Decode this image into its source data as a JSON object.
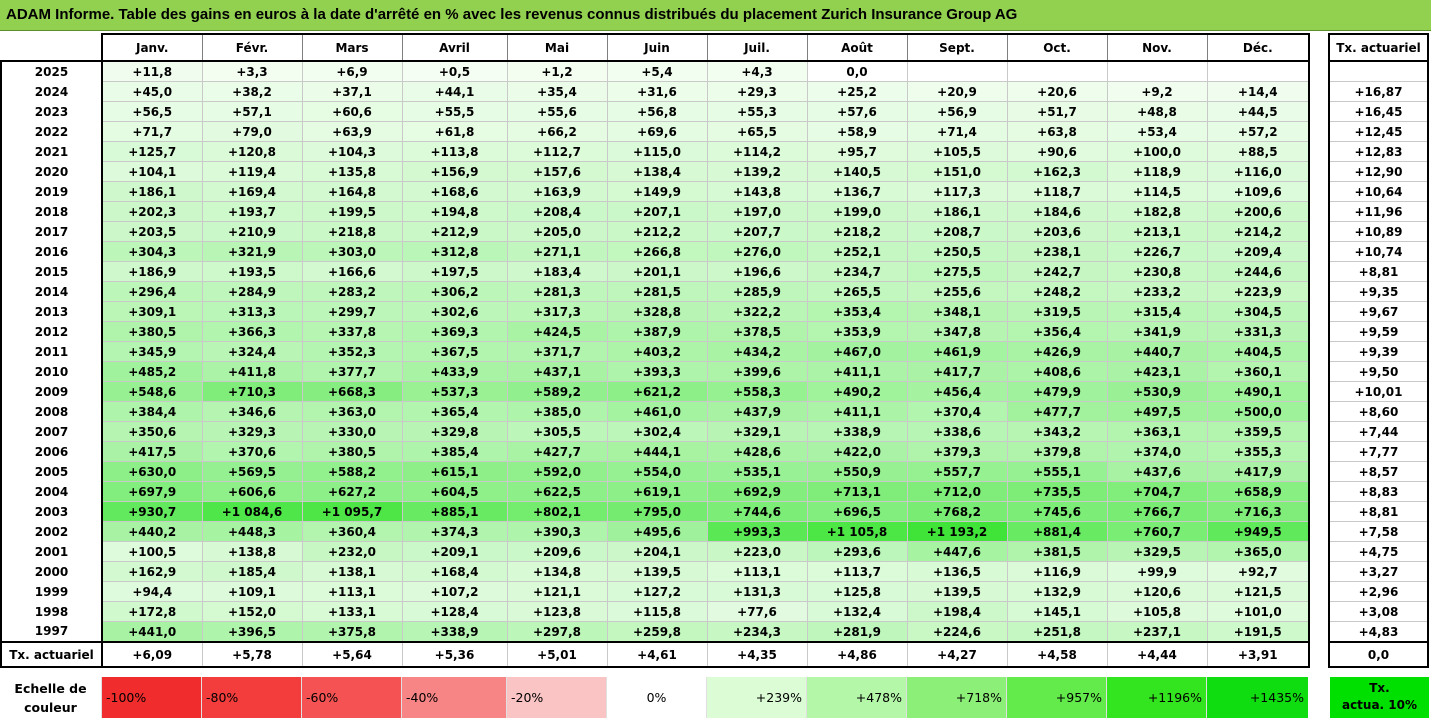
{
  "title": "ADAM Informe. Table des gains en euros à la date d'arrêté en % avec les revenus connus distribués du placement Zurich Insurance Group AG",
  "months": [
    "Janv.",
    "Févr.",
    "Mars",
    "Avril",
    "Mai",
    "Juin",
    "Juil.",
    "Août",
    "Sept.",
    "Oct.",
    "Nov.",
    "Déc."
  ],
  "tx_header": "Tx. actuariel",
  "rows": [
    {
      "year": "2025",
      "values": [
        "+11,8",
        "+3,3",
        "+6,9",
        "+0,5",
        "+1,2",
        "+5,4",
        "+4,3",
        "0,0",
        "",
        "",
        "",
        ""
      ],
      "tx": ""
    },
    {
      "year": "2024",
      "values": [
        "+45,0",
        "+38,2",
        "+37,1",
        "+44,1",
        "+35,4",
        "+31,6",
        "+29,3",
        "+25,2",
        "+20,9",
        "+20,6",
        "+9,2",
        "+14,4"
      ],
      "tx": "+16,87"
    },
    {
      "year": "2023",
      "values": [
        "+56,5",
        "+57,1",
        "+60,6",
        "+55,5",
        "+55,6",
        "+56,8",
        "+55,3",
        "+57,6",
        "+56,9",
        "+51,7",
        "+48,8",
        "+44,5"
      ],
      "tx": "+16,45"
    },
    {
      "year": "2022",
      "values": [
        "+71,7",
        "+79,0",
        "+63,9",
        "+61,8",
        "+66,2",
        "+69,6",
        "+65,5",
        "+58,9",
        "+71,4",
        "+63,8",
        "+53,4",
        "+57,2"
      ],
      "tx": "+12,45"
    },
    {
      "year": "2021",
      "values": [
        "+125,7",
        "+120,8",
        "+104,3",
        "+113,8",
        "+112,7",
        "+115,0",
        "+114,2",
        "+95,7",
        "+105,5",
        "+90,6",
        "+100,0",
        "+88,5"
      ],
      "tx": "+12,83"
    },
    {
      "year": "2020",
      "values": [
        "+104,1",
        "+119,4",
        "+135,8",
        "+156,9",
        "+157,6",
        "+138,4",
        "+139,2",
        "+140,5",
        "+151,0",
        "+162,3",
        "+118,9",
        "+116,0"
      ],
      "tx": "+12,90"
    },
    {
      "year": "2019",
      "values": [
        "+186,1",
        "+169,4",
        "+164,8",
        "+168,6",
        "+163,9",
        "+149,9",
        "+143,8",
        "+136,7",
        "+117,3",
        "+118,7",
        "+114,5",
        "+109,6"
      ],
      "tx": "+10,64"
    },
    {
      "year": "2018",
      "values": [
        "+202,3",
        "+193,7",
        "+199,5",
        "+194,8",
        "+208,4",
        "+207,1",
        "+197,0",
        "+199,0",
        "+186,1",
        "+184,6",
        "+182,8",
        "+200,6"
      ],
      "tx": "+11,96"
    },
    {
      "year": "2017",
      "values": [
        "+203,5",
        "+210,9",
        "+218,8",
        "+212,9",
        "+205,0",
        "+212,2",
        "+207,7",
        "+218,2",
        "+208,7",
        "+203,6",
        "+213,1",
        "+214,2"
      ],
      "tx": "+10,89"
    },
    {
      "year": "2016",
      "values": [
        "+304,3",
        "+321,9",
        "+303,0",
        "+312,8",
        "+271,1",
        "+266,8",
        "+276,0",
        "+252,1",
        "+250,5",
        "+238,1",
        "+226,7",
        "+209,4"
      ],
      "tx": "+10,74"
    },
    {
      "year": "2015",
      "values": [
        "+186,9",
        "+193,5",
        "+166,6",
        "+197,5",
        "+183,4",
        "+201,1",
        "+196,6",
        "+234,7",
        "+275,5",
        "+242,7",
        "+230,8",
        "+244,6"
      ],
      "tx": "+8,81"
    },
    {
      "year": "2014",
      "values": [
        "+296,4",
        "+284,9",
        "+283,2",
        "+306,2",
        "+281,3",
        "+281,5",
        "+285,9",
        "+265,5",
        "+255,6",
        "+248,2",
        "+233,2",
        "+223,9"
      ],
      "tx": "+9,35"
    },
    {
      "year": "2013",
      "values": [
        "+309,1",
        "+313,3",
        "+299,7",
        "+302,6",
        "+317,3",
        "+328,8",
        "+322,2",
        "+353,4",
        "+348,1",
        "+319,5",
        "+315,4",
        "+304,5"
      ],
      "tx": "+9,67"
    },
    {
      "year": "2012",
      "values": [
        "+380,5",
        "+366,3",
        "+337,8",
        "+369,3",
        "+424,5",
        "+387,9",
        "+378,5",
        "+353,9",
        "+347,8",
        "+356,4",
        "+341,9",
        "+331,3"
      ],
      "tx": "+9,59"
    },
    {
      "year": "2011",
      "values": [
        "+345,9",
        "+324,4",
        "+352,3",
        "+367,5",
        "+371,7",
        "+403,2",
        "+434,2",
        "+467,0",
        "+461,9",
        "+426,9",
        "+440,7",
        "+404,5"
      ],
      "tx": "+9,39"
    },
    {
      "year": "2010",
      "values": [
        "+485,2",
        "+411,8",
        "+377,7",
        "+433,9",
        "+437,1",
        "+393,3",
        "+399,6",
        "+411,1",
        "+417,7",
        "+408,6",
        "+423,1",
        "+360,1"
      ],
      "tx": "+9,50"
    },
    {
      "year": "2009",
      "values": [
        "+548,6",
        "+710,3",
        "+668,3",
        "+537,3",
        "+589,2",
        "+621,2",
        "+558,3",
        "+490,2",
        "+456,4",
        "+479,9",
        "+530,9",
        "+490,1"
      ],
      "tx": "+10,01"
    },
    {
      "year": "2008",
      "values": [
        "+384,4",
        "+346,6",
        "+363,0",
        "+365,4",
        "+385,0",
        "+461,0",
        "+437,9",
        "+411,1",
        "+370,4",
        "+477,7",
        "+497,5",
        "+500,0"
      ],
      "tx": "+8,60"
    },
    {
      "year": "2007",
      "values": [
        "+350,6",
        "+329,3",
        "+330,0",
        "+329,8",
        "+305,5",
        "+302,4",
        "+329,1",
        "+338,9",
        "+338,6",
        "+343,2",
        "+363,1",
        "+359,5"
      ],
      "tx": "+7,44"
    },
    {
      "year": "2006",
      "values": [
        "+417,5",
        "+370,6",
        "+380,5",
        "+385,4",
        "+427,7",
        "+444,1",
        "+428,6",
        "+422,0",
        "+379,3",
        "+379,8",
        "+374,0",
        "+355,3"
      ],
      "tx": "+7,77"
    },
    {
      "year": "2005",
      "values": [
        "+630,0",
        "+569,5",
        "+588,2",
        "+615,1",
        "+592,0",
        "+554,0",
        "+535,1",
        "+550,9",
        "+557,7",
        "+555,1",
        "+437,6",
        "+417,9"
      ],
      "tx": "+8,57"
    },
    {
      "year": "2004",
      "values": [
        "+697,9",
        "+606,6",
        "+627,2",
        "+604,5",
        "+622,5",
        "+619,1",
        "+692,9",
        "+713,1",
        "+712,0",
        "+735,5",
        "+704,7",
        "+658,9"
      ],
      "tx": "+8,83"
    },
    {
      "year": "2003",
      "values": [
        "+930,7",
        "+1 084,6",
        "+1 095,7",
        "+885,1",
        "+802,1",
        "+795,0",
        "+744,6",
        "+696,5",
        "+768,2",
        "+745,6",
        "+766,7",
        "+716,3"
      ],
      "tx": "+8,81"
    },
    {
      "year": "2002",
      "values": [
        "+440,2",
        "+448,3",
        "+360,4",
        "+374,3",
        "+390,3",
        "+495,6",
        "+993,3",
        "+1 105,8",
        "+1 193,2",
        "+881,4",
        "+760,7",
        "+949,5"
      ],
      "tx": "+7,58"
    },
    {
      "year": "2001",
      "values": [
        "+100,5",
        "+138,8",
        "+232,0",
        "+209,1",
        "+209,6",
        "+204,1",
        "+223,0",
        "+293,6",
        "+447,6",
        "+381,5",
        "+329,5",
        "+365,0"
      ],
      "tx": "+4,75"
    },
    {
      "year": "2000",
      "values": [
        "+162,9",
        "+185,4",
        "+138,1",
        "+168,4",
        "+134,8",
        "+139,5",
        "+113,1",
        "+113,7",
        "+136,5",
        "+116,9",
        "+99,9",
        "+92,7"
      ],
      "tx": "+3,27"
    },
    {
      "year": "1999",
      "values": [
        "+94,4",
        "+109,1",
        "+113,1",
        "+107,2",
        "+121,1",
        "+127,2",
        "+131,3",
        "+125,8",
        "+139,5",
        "+132,9",
        "+120,6",
        "+121,5"
      ],
      "tx": "+2,96"
    },
    {
      "year": "1998",
      "values": [
        "+172,8",
        "+152,0",
        "+133,1",
        "+128,4",
        "+123,8",
        "+115,8",
        "+77,6",
        "+132,4",
        "+198,4",
        "+145,1",
        "+105,8",
        "+101,0"
      ],
      "tx": "+3,08"
    },
    {
      "year": "1997",
      "values": [
        "+441,0",
        "+396,5",
        "+375,8",
        "+338,9",
        "+297,8",
        "+259,8",
        "+234,3",
        "+281,9",
        "+224,6",
        "+251,8",
        "+237,1",
        "+191,5"
      ],
      "tx": "+4,83"
    }
  ],
  "footer": {
    "label": "Tx. actuariel",
    "values": [
      "+6,09",
      "+5,78",
      "+5,64",
      "+5,36",
      "+5,01",
      "+4,61",
      "+4,35",
      "+4,86",
      "+4,27",
      "+4,58",
      "+4,44",
      "+3,91"
    ],
    "tx": "0,0"
  },
  "scale": {
    "label": "Echelle de couleur",
    "items": [
      {
        "text": "-100%",
        "color": "#f02c2c",
        "align": "left"
      },
      {
        "text": "-80%",
        "color": "#f33d3d",
        "align": "left"
      },
      {
        "text": "-60%",
        "color": "#f55353",
        "align": "left"
      },
      {
        "text": "-40%",
        "color": "#f88585",
        "align": "left"
      },
      {
        "text": "-20%",
        "color": "#fbc4c4",
        "align": "left"
      },
      {
        "text": "0%",
        "color": "#ffffff",
        "align": "center"
      },
      {
        "text": "+239%",
        "color": "#dcfcd6",
        "align": "right"
      },
      {
        "text": "+478%",
        "color": "#b4f7a8",
        "align": "right"
      },
      {
        "text": "+718%",
        "color": "#8cf078",
        "align": "right"
      },
      {
        "text": "+957%",
        "color": "#62eb4a",
        "align": "right"
      },
      {
        "text": "+1196%",
        "color": "#33e51e",
        "align": "right"
      },
      {
        "text": "+1435%",
        "color": "#10dd10",
        "align": "right"
      }
    ],
    "tx_legend": "Tx. actua. 10%",
    "tx_legend_color": "#00e000"
  },
  "colors": {
    "title_bg": "#92d050",
    "gain_max_value": 1435,
    "gain_light": "#f4fef2",
    "gain_dark": "#22e01a"
  }
}
